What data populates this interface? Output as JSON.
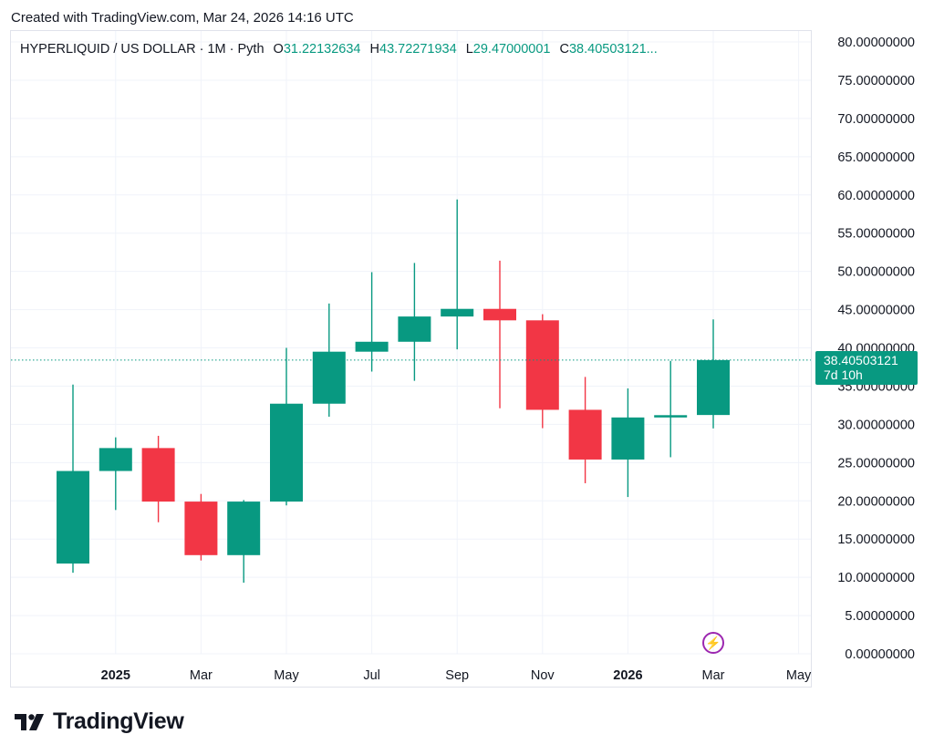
{
  "header": {
    "created_text": "Created with TradingView.com, Mar 24, 2026 14:16 UTC"
  },
  "legend": {
    "symbol": "HYPERLIQUID / US DOLLAR · 1M · Pyth",
    "o_label": "O",
    "o_value": "31.22132634",
    "h_label": "H",
    "h_value": "43.72271934",
    "l_label": "L",
    "l_value": "29.47000001",
    "c_label": "C",
    "c_value": "38.40503121..."
  },
  "price_tag": {
    "price": "38.40503121",
    "countdown": "7d 10h"
  },
  "brand": {
    "name": "TradingView"
  },
  "colors": {
    "up": "#089981",
    "down": "#f23645",
    "grid": "#f0f3fa",
    "axis_text": "#131722"
  },
  "chart_data": {
    "type": "candlestick",
    "title": "",
    "ylim": [
      0,
      80
    ],
    "grid": true,
    "y_ticks": [
      "80.00000000",
      "75.00000000",
      "70.00000000",
      "65.00000000",
      "60.00000000",
      "55.00000000",
      "50.00000000",
      "45.00000000",
      "40.00000000",
      "35.00000000",
      "30.00000000",
      "25.00000000",
      "20.00000000",
      "15.00000000",
      "10.00000000",
      "5.00000000",
      "0.00000000"
    ],
    "x_ticks": [
      {
        "label": "2025",
        "slot": 1,
        "bold": true
      },
      {
        "label": "Mar",
        "slot": 3,
        "bold": false
      },
      {
        "label": "May",
        "slot": 5,
        "bold": false
      },
      {
        "label": "Jul",
        "slot": 7,
        "bold": false
      },
      {
        "label": "Sep",
        "slot": 9,
        "bold": false
      },
      {
        "label": "Nov",
        "slot": 11,
        "bold": false
      },
      {
        "label": "2026",
        "slot": 13,
        "bold": true
      },
      {
        "label": "Mar",
        "slot": 15,
        "bold": false
      },
      {
        "label": "May",
        "slot": 17,
        "bold": false
      }
    ],
    "candles": [
      {
        "period": "2024-12",
        "open": 11.8,
        "high": 35.2,
        "low": 10.6,
        "close": 23.9
      },
      {
        "period": "2025-01",
        "open": 23.9,
        "high": 28.3,
        "low": 18.8,
        "close": 26.9
      },
      {
        "period": "2025-02",
        "open": 26.9,
        "high": 28.5,
        "low": 17.2,
        "close": 19.9
      },
      {
        "period": "2025-03",
        "open": 19.9,
        "high": 20.9,
        "low": 12.2,
        "close": 12.9
      },
      {
        "period": "2025-04",
        "open": 12.9,
        "high": 20.1,
        "low": 9.3,
        "close": 19.9
      },
      {
        "period": "2025-05",
        "open": 19.9,
        "high": 40.0,
        "low": 19.4,
        "close": 32.7
      },
      {
        "period": "2025-06",
        "open": 32.7,
        "high": 45.8,
        "low": 31.0,
        "close": 39.5
      },
      {
        "period": "2025-07",
        "open": 39.5,
        "high": 49.9,
        "low": 36.9,
        "close": 40.8
      },
      {
        "period": "2025-08",
        "open": 40.8,
        "high": 51.1,
        "low": 35.7,
        "close": 44.1
      },
      {
        "period": "2025-09",
        "open": 44.1,
        "high": 59.4,
        "low": 39.8,
        "close": 45.1
      },
      {
        "period": "2025-10",
        "open": 45.1,
        "high": 51.4,
        "low": 32.1,
        "close": 43.6
      },
      {
        "period": "2025-11",
        "open": 43.6,
        "high": 44.4,
        "low": 29.5,
        "close": 31.9
      },
      {
        "period": "2026-01-pre",
        "open": 31.9,
        "high": 36.2,
        "low": 22.3,
        "close": 25.4
      },
      {
        "period": "2026-01",
        "open": 25.4,
        "high": 34.7,
        "low": 20.5,
        "close": 30.9
      },
      {
        "period": "2026-02",
        "open": 30.9,
        "high": 38.3,
        "low": 25.7,
        "close": 31.2
      },
      {
        "period": "2026-03",
        "open": 31.22132634,
        "high": 43.72271934,
        "low": 29.47000001,
        "close": 38.40503121
      }
    ],
    "last_price": 38.40503121
  }
}
